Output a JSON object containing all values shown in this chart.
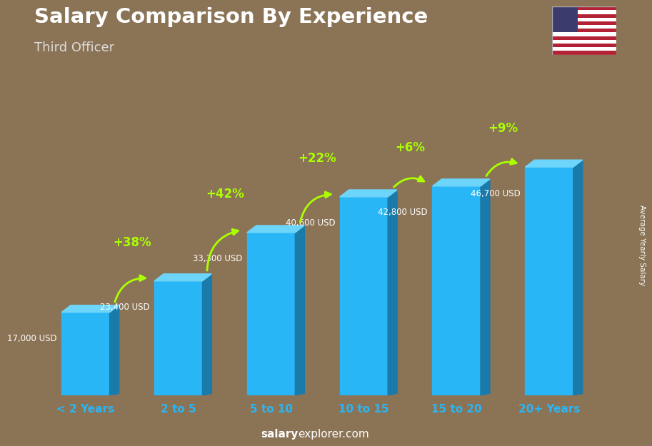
{
  "categories": [
    "< 2 Years",
    "2 to 5",
    "5 to 10",
    "10 to 15",
    "15 to 20",
    "20+ Years"
  ],
  "values": [
    17000,
    23400,
    33300,
    40600,
    42800,
    46700
  ],
  "bar_color": "#29b6f6",
  "bar_dark": "#1a7aaa",
  "bar_top": "#6dd5fa",
  "title": "Salary Comparison By Experience",
  "subtitle": "Third Officer",
  "ylabel": "Average Yearly Salary",
  "salary_labels": [
    "17,000 USD",
    "23,400 USD",
    "33,300 USD",
    "40,600 USD",
    "42,800 USD",
    "46,700 USD"
  ],
  "pct_labels": [
    "+38%",
    "+42%",
    "+22%",
    "+6%",
    "+9%"
  ],
  "watermark_bold": "salary",
  "watermark_normal": "explorer.com",
  "bg_color": "#8b7355",
  "title_color": "#ffffff",
  "subtitle_color": "#dddddd",
  "pct_color": "#aaff00",
  "tick_color": "#29b6f6",
  "ylim": [
    0,
    58000
  ],
  "salary_label_color": "#ffffff"
}
